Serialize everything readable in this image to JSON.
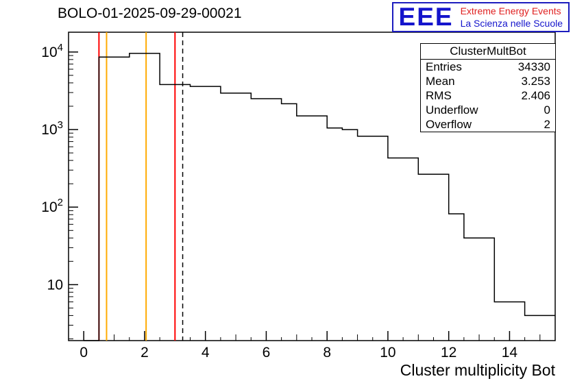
{
  "page": {
    "title": "BOLO-01-2025-09-29-00021"
  },
  "logo": {
    "letters": "EEE",
    "line1": "Extreme Energy Events",
    "line2": "La Scienza nelle Scuole",
    "letters_color": "#1414cc",
    "line1_color": "#e02020",
    "line2_color": "#1414cc",
    "border_color": "#1c1cbe"
  },
  "stats": {
    "title": "ClusterMultBot",
    "rows": [
      {
        "label": "Entries",
        "value": "34330"
      },
      {
        "label": "Mean",
        "value": "3.253"
      },
      {
        "label": "RMS",
        "value": "2.406"
      },
      {
        "label": "Underflow",
        "value": "0"
      },
      {
        "label": "Overflow",
        "value": "2"
      }
    ]
  },
  "chart_data": {
    "type": "bar",
    "style": "step-histogram",
    "title": "BOLO-01-2025-09-29-00021",
    "xlabel": "Cluster multiplicity Bot",
    "ylabel": "",
    "ylog": true,
    "grid": false,
    "xlim": [
      -0.5,
      15.5
    ],
    "ylim": [
      1.9,
      18000
    ],
    "bins": {
      "start": 0,
      "width": 0.5
    },
    "values": [
      0,
      8600,
      8600,
      9600,
      9600,
      3800,
      3800,
      3600,
      3600,
      2950,
      2950,
      2500,
      2500,
      2150,
      1500,
      1500,
      1050,
      1000,
      820,
      820,
      430,
      430,
      265,
      265,
      82,
      40,
      40,
      6,
      6,
      4,
      4
    ],
    "x_major_ticks": [
      0,
      2,
      4,
      6,
      8,
      10,
      12,
      14
    ],
    "y_major_ticks": [
      10,
      100,
      1000,
      10000
    ],
    "y_tick_labels": [
      "10",
      "10^2",
      "10^3",
      "10^4"
    ],
    "line_color": "#000000",
    "marker_lines": [
      {
        "x": 0.5,
        "color": "#ff0000",
        "style": "solid"
      },
      {
        "x": 0.75,
        "color": "#ffaa00",
        "style": "solid"
      },
      {
        "x": 2.05,
        "color": "#ffaa00",
        "style": "solid"
      },
      {
        "x": 3.0,
        "color": "#ff0000",
        "style": "solid"
      },
      {
        "x": 3.253,
        "color": "#000000",
        "style": "dashed"
      }
    ],
    "entries": 34330,
    "mean": 3.253,
    "rms": 2.406,
    "underflow": 0,
    "overflow": 2
  }
}
